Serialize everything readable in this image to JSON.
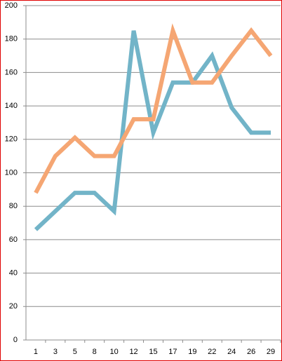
{
  "chart_data": {
    "type": "line",
    "categories": [
      "1",
      "3",
      "5",
      "8",
      "10",
      "12",
      "15",
      "17",
      "19",
      "22",
      "24",
      "26",
      "29"
    ],
    "series": [
      {
        "color": "#72b4c8",
        "values": [
          66,
          77,
          88,
          88,
          77,
          185,
          124,
          154,
          154,
          170,
          139,
          124,
          124
        ]
      },
      {
        "color": "#f5a673",
        "values": [
          88,
          110,
          121,
          110,
          110,
          132,
          132,
          185,
          154,
          154,
          170,
          185,
          170
        ]
      }
    ],
    "ylim": [
      0,
      200
    ],
    "yticks": [
      0,
      20,
      40,
      60,
      80,
      100,
      120,
      140,
      160,
      180,
      200
    ],
    "grid": true
  }
}
